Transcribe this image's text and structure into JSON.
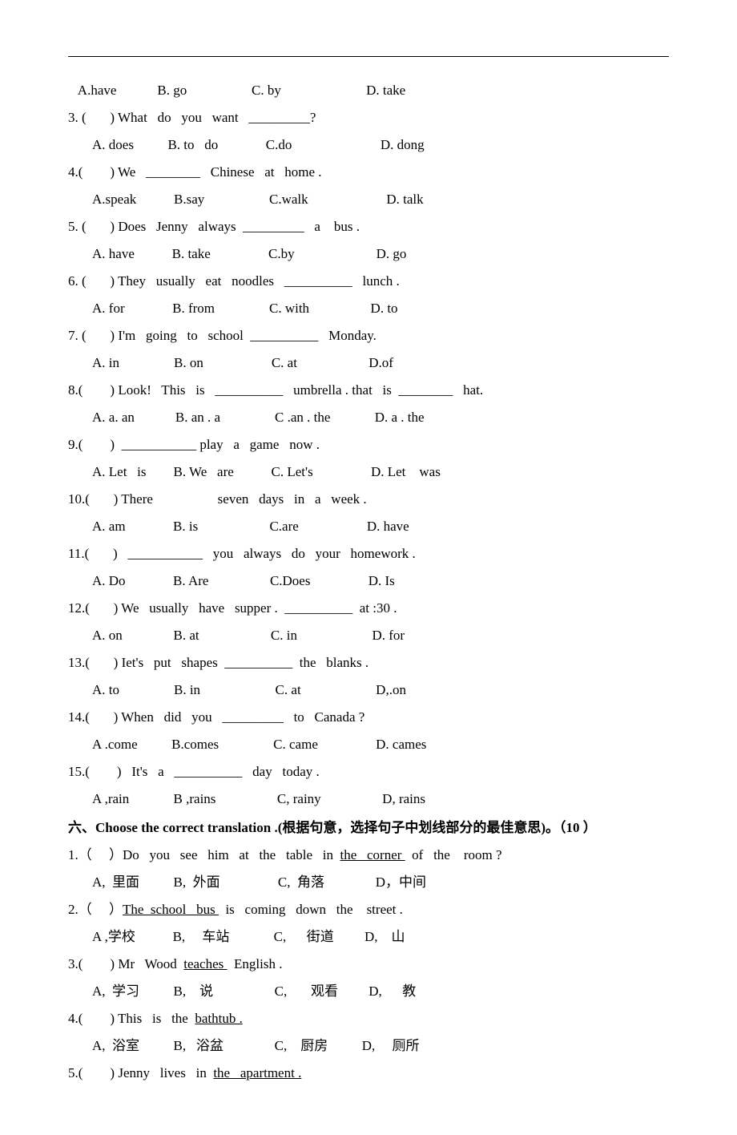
{
  "section5": {
    "questions": [
      {
        "stem": "   A.have            B. go                   C. by                         D. take",
        "options": ""
      },
      {
        "stem": "3. (       ) What   do   you   want   _________?",
        "options": "A. does          B. to   do              C.do                          D. dong"
      },
      {
        "stem": "4.(        ) We   ________   Chinese   at   home .",
        "options": "A.speak           B.say                   C.walk                       D. talk"
      },
      {
        "stem": "5. (       ) Does   Jenny   always  _________   a    bus .",
        "options": "A. have           B. take                 C.by                        D. go"
      },
      {
        "stem": "6. (       ) They   usually   eat   noodles   __________   lunch .",
        "options": "A. for              B. from                C. with                  D. to"
      },
      {
        "stem": "7. (       ) I'm   going   to   school  __________   Monday.",
        "options": "A. in                B. on                    C. at                     D.of"
      },
      {
        "stem": "8.(        ) Look!   This   is   __________   umbrella . that   is  ________   hat.",
        "options": "A. a. an            B. an . a                C .an . the             D. a . the"
      },
      {
        "stem": "9.(        )  ___________ play   a   game   now .",
        "options": "A. Let   is        B. We   are           C. Let's                 D. Let    was"
      },
      {
        "stem": "10.(       ) There                   seven   days   in   a   week .",
        "options": "A. am              B. is                     C.are                    D. have"
      },
      {
        "stem": "11.(       )   ___________   you   always   do   your   homework .",
        "options": "A. Do              B. Are                  C.Does                 D. Is"
      },
      {
        "stem": "12.(       ) We   usually   have   supper .  __________  at :30 .",
        "options": "A. on               B. at                     C. in                      D. for"
      },
      {
        "stem": "13.(       ) Iet's   put   shapes  __________  the   blanks .",
        "options": "A. to                B. in                      C. at                      D,.on"
      },
      {
        "stem": "14.(       ) When   did   you   _________   to   Canada ?",
        "options": "A .come          B.comes                C. came                 D. cames"
      },
      {
        "stem": "15.(        )   It's   a   __________   day   today .",
        "options": "A ,rain             B ,rains                  C, rainy                  D, rains"
      }
    ]
  },
  "section6": {
    "header": " 六、Choose   the   correct   translation .(根据句意，选择句子中划线部分的最佳意思)。（10 ）",
    "questions": [
      {
        "prefix": "1.（     ）Do   you   see   him   at   the   table   in  ",
        "underlined": "the   corner ",
        "suffix": "  of   the    room ?",
        "options": "A,  里面          B,  外面                 C,  角落               D，中间"
      },
      {
        "prefix": "2.（     ）",
        "underlined": "The  school   bus ",
        "suffix": "  is   coming   down   the    street .",
        "options": "A ,学校           B,     车站             C,      街道         D,    山"
      },
      {
        "prefix": "3.(        ) Mr   Wood  ",
        "underlined": "teaches ",
        "suffix": "  English .",
        "options": "A,  学习          B,    说                  C,       观看         D,      教"
      },
      {
        "prefix": "4.(        ) This   is   the  ",
        "underlined": "bathtub .",
        "suffix": "",
        "options": "A,  浴室          B,   浴盆               C,    厨房          D,     厕所"
      },
      {
        "prefix": "5.(        ) Jenny   lives   in  ",
        "underlined": "the   apartment .",
        "suffix": "",
        "options": ""
      }
    ]
  }
}
